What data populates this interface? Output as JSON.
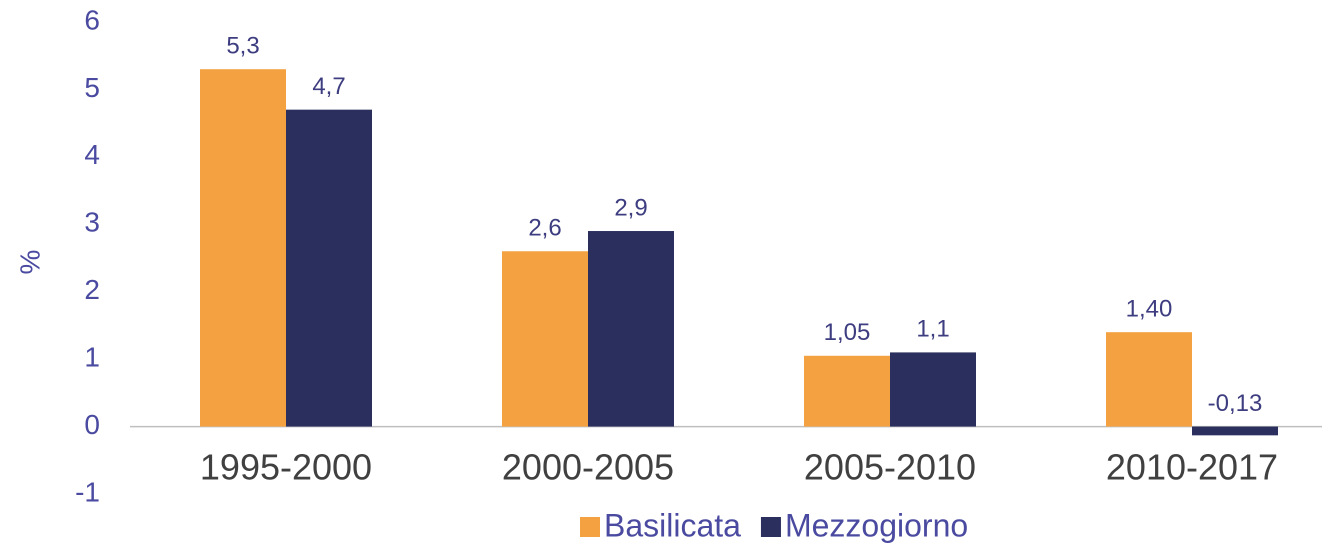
{
  "chart_data": {
    "type": "bar",
    "y_label": "%",
    "categories": [
      "1995-2000",
      "2000-2005",
      "2005-2010",
      "2010-2017"
    ],
    "series": [
      {
        "name": "Basilicata",
        "color": "#f4a142",
        "values": [
          5.3,
          2.6,
          1.05,
          1.4
        ],
        "value_labels": [
          "5,3",
          "2,6",
          "1,05",
          "1,40"
        ]
      },
      {
        "name": "Mezzogiorno",
        "color": "#2b2f5e",
        "values": [
          4.7,
          2.9,
          1.1,
          -0.13
        ],
        "value_labels": [
          "4,7",
          "2,9",
          "1,1",
          "-0,13"
        ]
      }
    ],
    "ylim": [
      -1,
      6
    ],
    "yticks": [
      -1,
      0,
      1,
      2,
      3,
      4,
      5,
      6
    ],
    "grid": false,
    "legend": "bottom"
  }
}
